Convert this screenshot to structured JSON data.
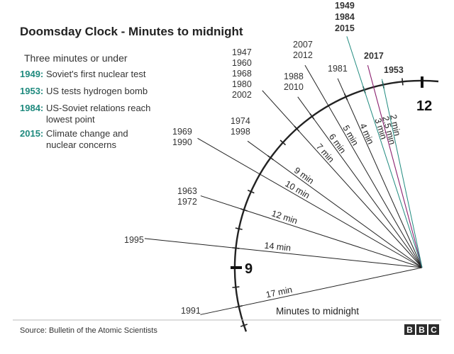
{
  "chart_data": {
    "type": "radial-line",
    "title": "Doomsday Clock - Minutes to midnight",
    "subtitle": "Three minutes or under",
    "key": [
      {
        "year": "1949:",
        "text": [
          "Soviet's first nuclear test"
        ]
      },
      {
        "year": "1953:",
        "text": [
          "US tests hydrogen bomb"
        ]
      },
      {
        "year": "1984:",
        "text": [
          "US-Soviet relations reach",
          "lowest point"
        ]
      },
      {
        "year": "2015:",
        "text": [
          "Climate change and",
          "nuclear concerns"
        ]
      }
    ],
    "dial_labels": {
      "twelve": "12",
      "nine": "9"
    },
    "axis_label": "Minutes to midnight",
    "entries": [
      {
        "minutes": 17,
        "label": "17 min",
        "years": [
          "1991"
        ]
      },
      {
        "minutes": 14,
        "label": "14 min",
        "years": [
          "1995"
        ]
      },
      {
        "minutes": 12,
        "label": "12 min",
        "years": [
          "1963",
          "1972"
        ]
      },
      {
        "minutes": 10,
        "label": "10 min",
        "years": [
          "1969",
          "1990"
        ]
      },
      {
        "minutes": 9,
        "label": "9 min",
        "years": [
          "1974",
          "1998"
        ]
      },
      {
        "minutes": 7,
        "label": "7 min",
        "years": [
          "1947",
          "1960",
          "1968",
          "1980",
          "2002"
        ]
      },
      {
        "minutes": 6,
        "label": "6 min",
        "years": [
          "1988",
          "2010"
        ]
      },
      {
        "minutes": 5,
        "label": "5 min",
        "years": [
          "2007",
          "2012"
        ]
      },
      {
        "minutes": 4,
        "label": "4 min",
        "years": [
          "1981"
        ]
      },
      {
        "minutes": 3,
        "label": "3 min",
        "years": [
          "1949",
          "1984",
          "2015"
        ],
        "highlight": "teal"
      },
      {
        "minutes": 2.5,
        "label": "2.5 min",
        "years": [
          "2017"
        ],
        "highlight": "purple"
      },
      {
        "minutes": 2,
        "label": "2 min",
        "years": [
          "1953"
        ],
        "highlight": "teal"
      }
    ],
    "colors": {
      "teal": "#1f8a7e",
      "purple": "#8a1f6e",
      "line": "#222222"
    }
  },
  "footer": {
    "source": "Source: Bulletin of the Atomic Scientists",
    "logo": [
      "B",
      "B",
      "C"
    ]
  }
}
